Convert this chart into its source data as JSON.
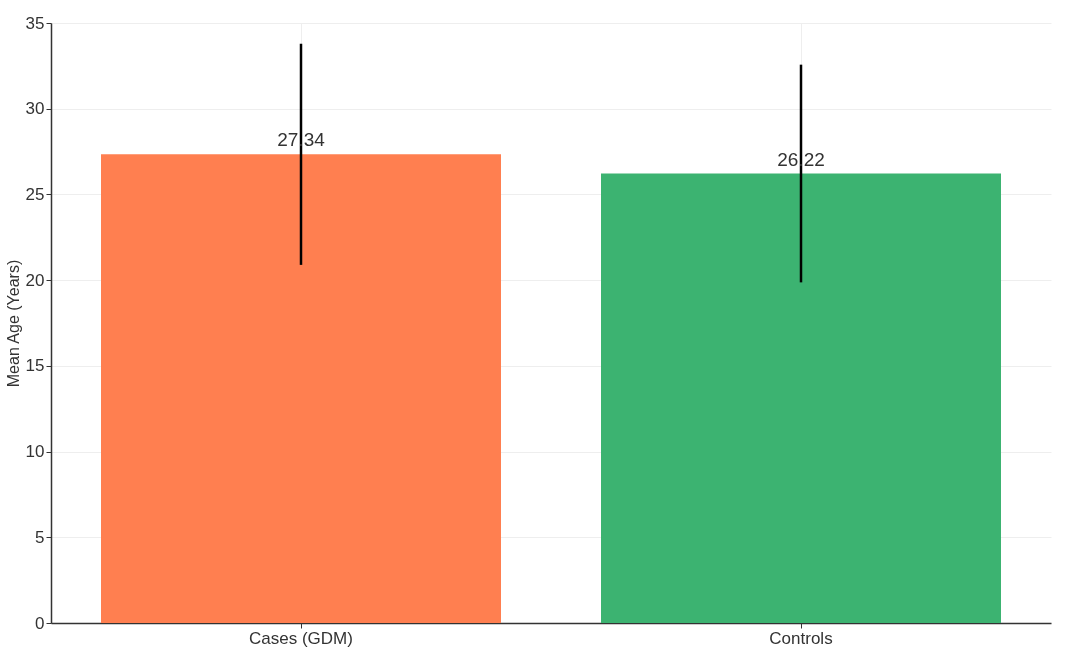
{
  "chart_data": {
    "type": "bar",
    "ylabel": "Mean Age (Years)",
    "categories": [
      "Cases (GDM)",
      "Controls"
    ],
    "values": [
      27.34,
      26.22
    ],
    "colors": [
      "#ff7f50",
      "#3cb371"
    ],
    "errors": [
      6.45,
      6.35
    ],
    "ylim": [
      0,
      35
    ],
    "yticks": [
      0,
      5,
      10,
      15,
      20,
      25,
      30,
      35
    ],
    "grid": true,
    "data_labels": true
  }
}
